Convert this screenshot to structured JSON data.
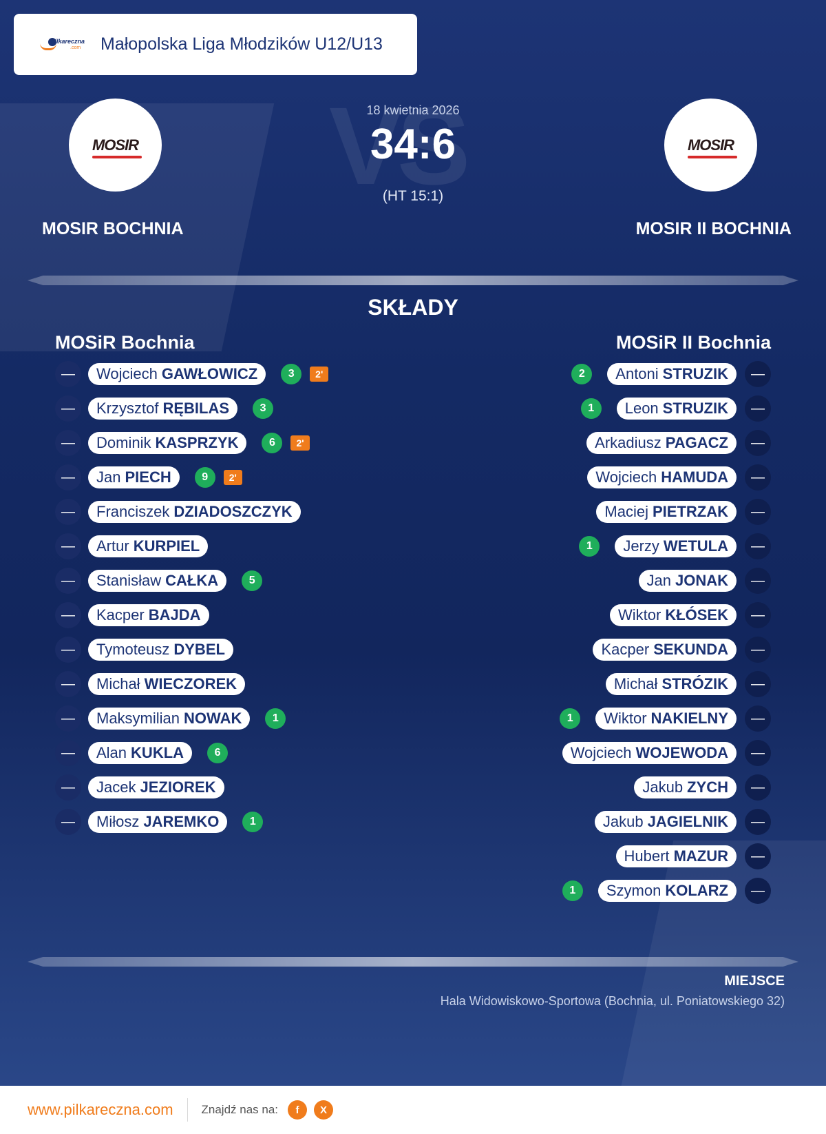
{
  "header": {
    "league": "Małopolska Liga Młodzików U12/U13",
    "logo_text": "pilkareczna",
    "logo_sub": ".com"
  },
  "match": {
    "date": "18 kwietnia 2026",
    "score": "34:6",
    "halftime": "(HT 15:1)",
    "home": {
      "name": "MOSIR BOCHNIA",
      "logo": "MOSIR"
    },
    "away": {
      "name": "MOSIR II BOCHNIA",
      "logo": "MOSIR"
    }
  },
  "lineups": {
    "title": "SKŁADY",
    "home_title": "MOSiR Bochnia",
    "away_title": "MOSiR II Bochnia",
    "home": [
      {
        "first": "Wojciech",
        "last": "GAWŁOWICZ",
        "num": "—",
        "goals": "3",
        "pen": "2'"
      },
      {
        "first": "Krzysztof",
        "last": "RĘBILAS",
        "num": "—",
        "goals": "3",
        "pen": ""
      },
      {
        "first": "Dominik",
        "last": "KASPRZYK",
        "num": "—",
        "goals": "6",
        "pen": "2'"
      },
      {
        "first": "Jan",
        "last": "PIECH",
        "num": "—",
        "goals": "9",
        "pen": "2'"
      },
      {
        "first": "Franciszek",
        "last": "DZIADOSZCZYK",
        "num": "—",
        "goals": "",
        "pen": ""
      },
      {
        "first": "Artur",
        "last": "KURPIEL",
        "num": "—",
        "goals": "",
        "pen": ""
      },
      {
        "first": "Stanisław",
        "last": "CAŁKA",
        "num": "—",
        "goals": "5",
        "pen": ""
      },
      {
        "first": "Kacper",
        "last": "BAJDA",
        "num": "—",
        "goals": "",
        "pen": ""
      },
      {
        "first": "Tymoteusz",
        "last": "DYBEL",
        "num": "—",
        "goals": "",
        "pen": ""
      },
      {
        "first": "Michał",
        "last": "WIECZOREK",
        "num": "—",
        "goals": "",
        "pen": ""
      },
      {
        "first": "Maksymilian",
        "last": "NOWAK",
        "num": "—",
        "goals": "1",
        "pen": ""
      },
      {
        "first": "Alan",
        "last": "KUKLA",
        "num": "—",
        "goals": "6",
        "pen": ""
      },
      {
        "first": "Jacek",
        "last": "JEZIOREK",
        "num": "—",
        "goals": "",
        "pen": ""
      },
      {
        "first": "Miłosz",
        "last": "JAREMKO",
        "num": "—",
        "goals": "1",
        "pen": ""
      }
    ],
    "away": [
      {
        "first": "Antoni",
        "last": "STRUZIK",
        "num": "—",
        "goals": "2"
      },
      {
        "first": "Leon",
        "last": "STRUZIK",
        "num": "—",
        "goals": "1"
      },
      {
        "first": "Arkadiusz",
        "last": "PAGACZ",
        "num": "—",
        "goals": ""
      },
      {
        "first": "Wojciech",
        "last": "HAMUDA",
        "num": "—",
        "goals": ""
      },
      {
        "first": "Maciej",
        "last": "PIETRZAK",
        "num": "—",
        "goals": ""
      },
      {
        "first": "Jerzy",
        "last": "WETULA",
        "num": "—",
        "goals": "1"
      },
      {
        "first": "Jan",
        "last": "JONAK",
        "num": "—",
        "goals": ""
      },
      {
        "first": "Wiktor",
        "last": "KŁÓSEK",
        "num": "—",
        "goals": ""
      },
      {
        "first": "Kacper",
        "last": "SEKUNDA",
        "num": "—",
        "goals": ""
      },
      {
        "first": "Michał",
        "last": "STRÓZIK",
        "num": "—",
        "goals": ""
      },
      {
        "first": "Wiktor",
        "last": "NAKIELNY",
        "num": "—",
        "goals": "1"
      },
      {
        "first": "Wojciech",
        "last": "WOJEWODA",
        "num": "—",
        "goals": ""
      },
      {
        "first": "Jakub",
        "last": "ZYCH",
        "num": "—",
        "goals": ""
      },
      {
        "first": "Jakub",
        "last": "JAGIELNIK",
        "num": "—",
        "goals": ""
      },
      {
        "first": "Hubert",
        "last": "MAZUR",
        "num": "—",
        "goals": ""
      },
      {
        "first": "Szymon",
        "last": "KOLARZ",
        "num": "—",
        "goals": "1"
      }
    ]
  },
  "venue": {
    "label": "MIEJSCE",
    "value": "Hala Widowiskowo-Sportowa (Bochnia, ul. Poniatowskiego 32)"
  },
  "footer": {
    "site": "www.pilkareczna.com",
    "find": "Znajdź nas na:",
    "facebook": "f",
    "x": "X"
  },
  "colors": {
    "navy": "#1d3475",
    "accent": "#f07c1c",
    "goal": "#1fae5b"
  }
}
